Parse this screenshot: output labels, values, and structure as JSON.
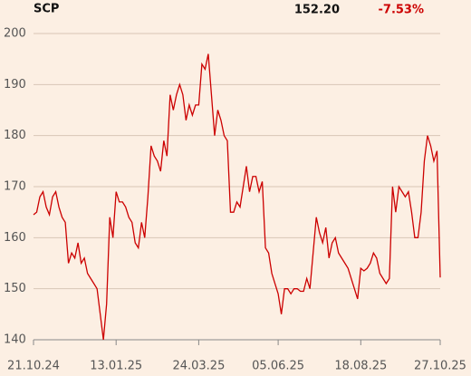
{
  "chart_data": {
    "type": "line",
    "title": "SCP",
    "price": "152.20",
    "change": "-7.53%",
    "categories": [
      "21.10.24",
      null,
      null,
      null,
      null,
      null,
      null,
      null,
      null,
      null,
      null,
      null,
      null,
      null,
      null,
      null,
      null,
      null,
      null,
      null,
      null,
      null,
      null,
      null,
      null,
      null,
      "13.01.25",
      null,
      null,
      null,
      null,
      null,
      null,
      null,
      null,
      null,
      null,
      null,
      null,
      null,
      null,
      null,
      null,
      null,
      null,
      null,
      null,
      null,
      null,
      null,
      null,
      null,
      "24.03.25",
      null,
      null,
      null,
      null,
      null,
      null,
      null,
      null,
      null,
      null,
      null,
      null,
      null,
      null,
      null,
      null,
      null,
      null,
      null,
      null,
      null,
      null,
      null,
      null,
      "05.06.25",
      null,
      null,
      null,
      null,
      null,
      null,
      null,
      null,
      null,
      null,
      null,
      null,
      null,
      null,
      null,
      null,
      null,
      null,
      null,
      null,
      null,
      null,
      null,
      null,
      null,
      "18.08.25",
      null,
      null,
      null,
      null,
      null,
      null,
      null,
      null,
      null,
      null,
      null,
      null,
      null,
      null,
      null,
      null,
      null,
      null,
      null,
      null,
      null,
      null,
      null,
      null,
      "27.10.25"
    ],
    "series": [
      {
        "name": "SCP",
        "color": "#cc0000",
        "values": [
          164.5,
          165,
          168,
          169,
          166,
          164.5,
          168,
          169,
          166,
          164,
          163,
          155,
          157,
          156,
          159,
          155,
          156,
          153,
          152,
          151,
          150,
          145,
          140,
          147,
          164,
          160,
          169,
          167,
          167,
          166,
          164,
          163,
          159,
          158,
          163,
          160,
          168,
          178,
          176,
          175,
          173,
          179,
          176,
          188,
          185,
          188,
          190,
          188,
          183,
          186,
          184,
          186,
          186,
          194,
          193,
          196,
          188,
          180,
          185,
          183,
          180,
          179,
          165,
          165,
          167,
          166,
          170,
          174,
          169,
          172,
          172,
          169,
          171,
          158,
          157,
          153,
          151,
          149,
          145,
          150,
          150,
          149,
          150,
          150,
          149.5,
          149.5,
          152,
          150,
          157,
          164,
          161,
          159,
          162,
          156,
          159,
          160,
          157,
          156,
          155,
          154,
          152,
          150,
          148,
          154,
          153.5,
          154,
          155,
          157,
          156,
          153,
          152,
          151,
          152,
          170,
          165,
          170,
          169,
          168,
          169,
          165,
          160,
          160,
          165,
          175,
          180,
          178,
          175,
          177,
          152.2
        ]
      }
    ],
    "ylim": [
      140,
      200
    ],
    "yticks": [
      140,
      150,
      160,
      170,
      180,
      190,
      200
    ],
    "grid": true
  }
}
